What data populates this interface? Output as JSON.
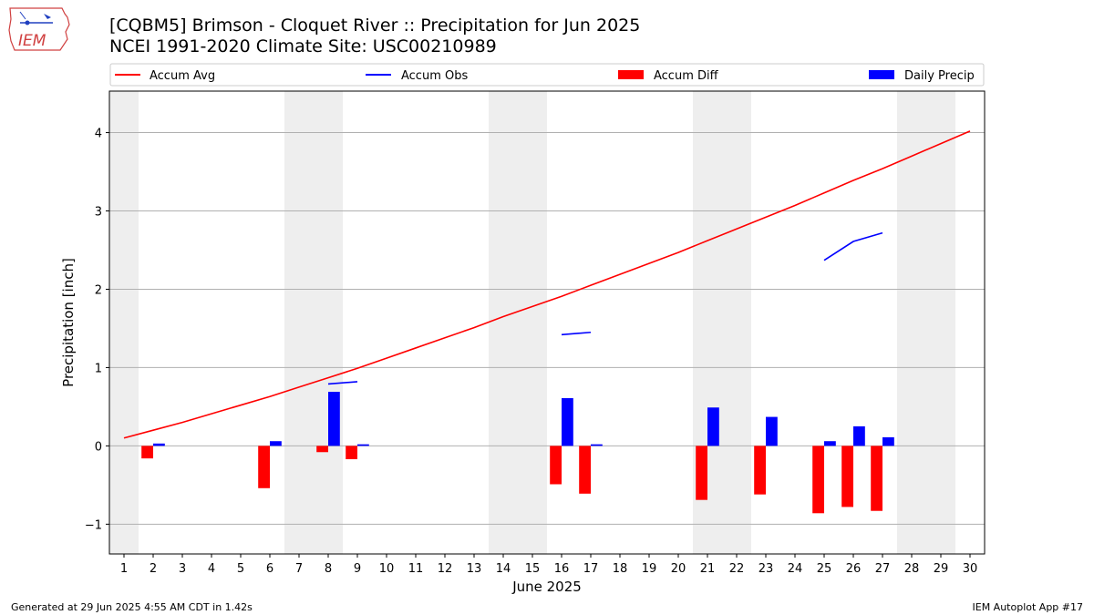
{
  "header": {
    "title_line1": "[CQBM5] Brimson - Cloquet River :: Precipitation for Jun 2025",
    "title_line2": "NCEI 1991-2020 Climate Site: USC00210989",
    "logo_text": "IEM"
  },
  "footer": {
    "generated": "Generated at 29 Jun 2025 4:55 AM CDT in 1.42s",
    "app": "IEM Autoplot App #17"
  },
  "colors": {
    "accum_avg": "#ff0000",
    "accum_obs": "#0000ff",
    "accum_diff": "#ff0000",
    "daily_precip": "#0000ff",
    "weekend_shade": "#eeeeee",
    "grid": "#b0b0b0"
  },
  "chart_data": {
    "type": "bar",
    "xlabel": "June 2025",
    "ylabel": "Precipitation [inch]",
    "xlim": [
      0.5,
      30.5
    ],
    "ylim": [
      -1.38,
      4.53
    ],
    "yticks": [
      -1,
      0,
      1,
      2,
      3,
      4
    ],
    "ytick_labels": [
      "−1",
      "0",
      "1",
      "2",
      "3",
      "4"
    ],
    "xticks": [
      1,
      2,
      3,
      4,
      5,
      6,
      7,
      8,
      9,
      10,
      11,
      12,
      13,
      14,
      15,
      16,
      17,
      18,
      19,
      20,
      21,
      22,
      23,
      24,
      25,
      26,
      27,
      28,
      29,
      30
    ],
    "grid": "horizontal",
    "legend_placement": "top",
    "legend": [
      "Accum Avg",
      "Accum Obs",
      "Accum Diff",
      "Daily Precip"
    ],
    "weekend_spans": [
      [
        0.5,
        1.5
      ],
      [
        6.5,
        8.5
      ],
      [
        13.5,
        15.5
      ],
      [
        20.5,
        22.5
      ],
      [
        27.5,
        29.5
      ]
    ],
    "accum_avg": {
      "name": "Accum Avg",
      "x": [
        1,
        2,
        3,
        4,
        5,
        6,
        7,
        8,
        9,
        10,
        11,
        12,
        13,
        14,
        15,
        16,
        17,
        18,
        19,
        20,
        21,
        22,
        23,
        24,
        25,
        26,
        27,
        28,
        29,
        30
      ],
      "values": [
        0.1,
        0.2,
        0.3,
        0.41,
        0.52,
        0.63,
        0.75,
        0.87,
        0.99,
        1.12,
        1.25,
        1.38,
        1.51,
        1.65,
        1.78,
        1.91,
        2.05,
        2.19,
        2.33,
        2.47,
        2.62,
        2.77,
        2.92,
        3.07,
        3.23,
        3.39,
        3.54,
        3.7,
        3.86,
        4.02
      ]
    },
    "accum_obs": {
      "name": "Accum Obs",
      "segments": [
        {
          "x": [
            8,
            9
          ],
          "values": [
            0.79,
            0.82
          ]
        },
        {
          "x": [
            16,
            17
          ],
          "values": [
            1.42,
            1.45
          ]
        },
        {
          "x": [
            25,
            26,
            27
          ],
          "values": [
            2.37,
            2.61,
            2.72
          ]
        }
      ]
    },
    "accum_diff": {
      "name": "Accum Diff",
      "x": [
        2,
        6,
        8,
        9,
        16,
        17,
        21,
        23,
        25,
        26,
        27
      ],
      "values": [
        -0.16,
        -0.54,
        -0.08,
        -0.17,
        -0.49,
        -0.61,
        -0.69,
        -0.62,
        -0.86,
        -0.78,
        -0.83
      ]
    },
    "daily_precip": {
      "name": "Daily Precip",
      "x": [
        2,
        6,
        8,
        9,
        16,
        17,
        21,
        23,
        25,
        26,
        27
      ],
      "values": [
        0.03,
        0.06,
        0.69,
        0.02,
        0.61,
        0.02,
        0.49,
        0.37,
        0.06,
        0.25,
        0.11
      ]
    }
  }
}
